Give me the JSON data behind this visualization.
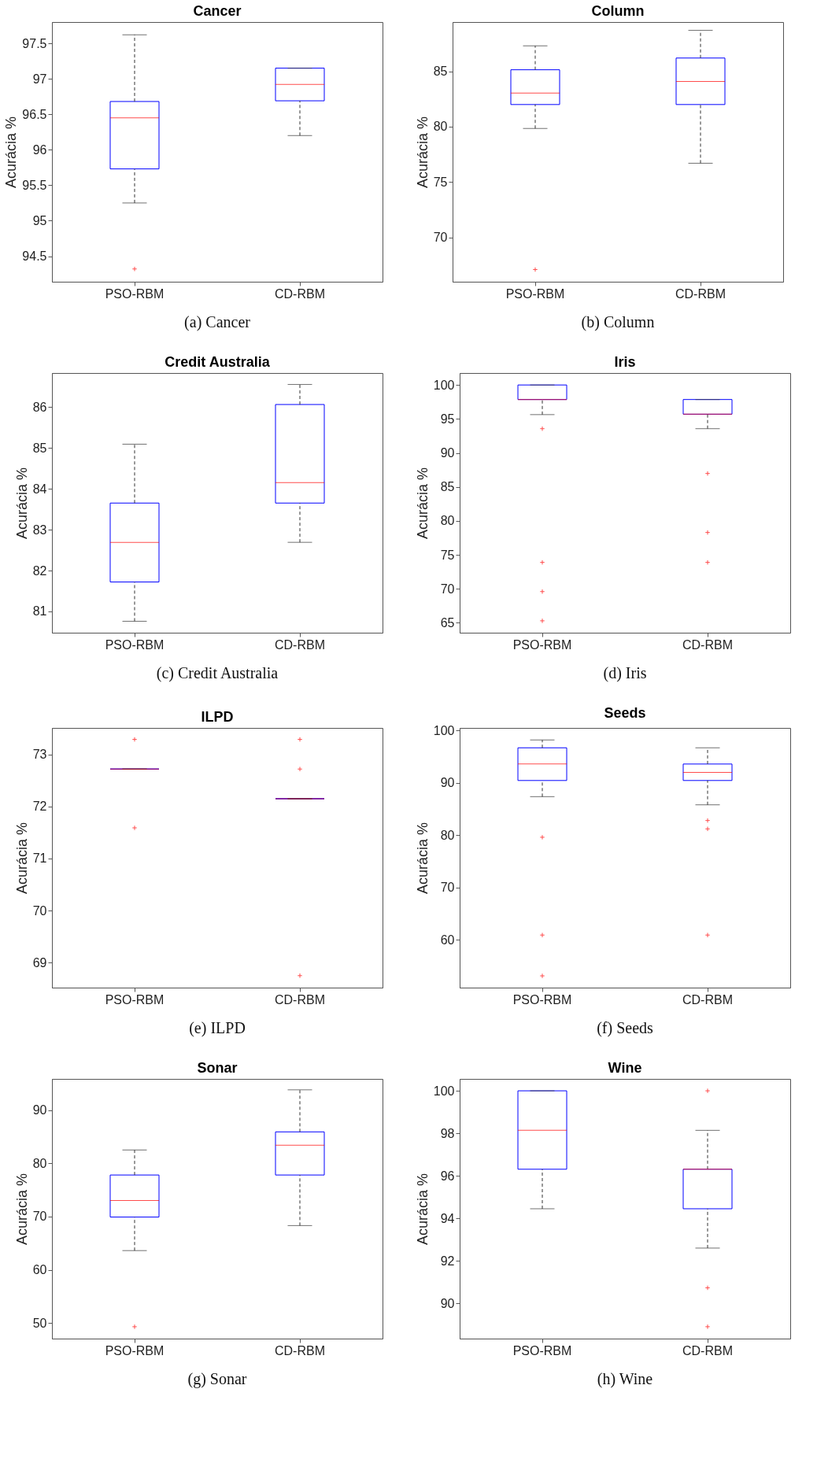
{
  "chart_data": [
    {
      "type": "box",
      "title": "Cancer",
      "ylabel": "Acurácia %",
      "categories": [
        "PSO-RBM",
        "CD-RBM"
      ],
      "ylim": [
        94.14,
        97.8
      ],
      "yticks": [
        94.5,
        95,
        95.5,
        96,
        96.5,
        97,
        97.5
      ],
      "annotations": [
        "(a) Cancer"
      ],
      "boxes": [
        {
          "low": 95.25,
          "q1": 95.73,
          "median": 96.45,
          "q3": 96.68,
          "high": 97.62,
          "outliers": [
            94.32
          ]
        },
        {
          "low": 96.2,
          "q1": 96.69,
          "median": 96.92,
          "q3": 97.15,
          "high": 97.15
        }
      ]
    },
    {
      "type": "box",
      "title": "Column",
      "ylabel": "Acurácia %",
      "categories": [
        "PSO-RBM",
        "CD-RBM"
      ],
      "ylim": [
        66.0,
        89.45
      ],
      "yticks": [
        70,
        75,
        80,
        85
      ],
      "annotations": [
        "(b) Column"
      ],
      "boxes": [
        {
          "low": 79.84,
          "q1": 82.0,
          "median": 83.03,
          "q3": 85.14,
          "high": 87.3,
          "outliers": [
            67.1
          ]
        },
        {
          "low": 76.7,
          "q1": 82.0,
          "median": 84.08,
          "q3": 86.2,
          "high": 88.7
        }
      ]
    },
    {
      "type": "box",
      "title": "Credit Australia",
      "ylabel": "Acurácia %",
      "categories": [
        "PSO-RBM",
        "CD-RBM"
      ],
      "ylim": [
        80.48,
        86.83
      ],
      "yticks": [
        81,
        82,
        83,
        84,
        85,
        86
      ],
      "annotations": [
        "(c) Credit Australia"
      ],
      "boxes": [
        {
          "low": 80.76,
          "q1": 81.72,
          "median": 82.69,
          "q3": 83.65,
          "high": 85.09
        },
        {
          "low": 82.69,
          "q1": 83.65,
          "median": 84.15,
          "q3": 86.06,
          "high": 86.55
        }
      ]
    },
    {
      "type": "box",
      "title": "Iris",
      "ylabel": "Acurácia %",
      "categories": [
        "PSO-RBM",
        "CD-RBM"
      ],
      "ylim": [
        63.55,
        101.76
      ],
      "yticks": [
        65,
        70,
        75,
        80,
        85,
        90,
        95,
        100
      ],
      "annotations": [
        "(d) Iris"
      ],
      "boxes": [
        {
          "low": 95.64,
          "q1": 97.86,
          "median": 97.86,
          "q3": 100,
          "high": 100,
          "outliers": [
            93.57,
            73.9,
            69.6,
            65.3
          ]
        },
        {
          "low": 93.57,
          "q1": 95.7,
          "median": 95.7,
          "q3": 97.86,
          "high": 97.86,
          "outliers": [
            86.98,
            78.3,
            73.9
          ]
        }
      ]
    },
    {
      "type": "box",
      "title": "ILPD",
      "ylabel": "Acurácia %",
      "categories": [
        "PSO-RBM",
        "CD-RBM"
      ],
      "ylim": [
        68.52,
        73.51
      ],
      "yticks": [
        69,
        70,
        71,
        72,
        73
      ],
      "annotations": [
        "(e) ILPD"
      ],
      "boxes": [
        {
          "low": 72.72,
          "q1": 72.72,
          "median": 72.72,
          "q3": 72.72,
          "high": 72.72,
          "outliers": [
            73.29,
            71.59
          ]
        },
        {
          "low": 72.15,
          "q1": 72.15,
          "median": 72.15,
          "q3": 72.15,
          "high": 72.15,
          "outliers": [
            73.29,
            72.72,
            68.75
          ]
        }
      ]
    },
    {
      "type": "box",
      "title": "Seeds",
      "ylabel": "Acurácia %",
      "categories": [
        "PSO-RBM",
        "CD-RBM"
      ],
      "ylim": [
        50.85,
        100.5
      ],
      "yticks": [
        60,
        70,
        80,
        90,
        100
      ],
      "annotations": [
        "(f) Seeds"
      ],
      "boxes": [
        {
          "low": 87.36,
          "q1": 90.45,
          "median": 93.6,
          "q3": 96.7,
          "high": 98.2,
          "outliers": [
            79.6,
            60.9,
            53.1
          ]
        },
        {
          "low": 85.8,
          "q1": 90.45,
          "median": 92.0,
          "q3": 93.6,
          "high": 96.7,
          "outliers": [
            82.8,
            81.2,
            60.9
          ]
        }
      ]
    },
    {
      "type": "box",
      "title": "Sonar",
      "ylabel": "Acurácia %",
      "categories": [
        "PSO-RBM",
        "CD-RBM"
      ],
      "ylim": [
        47.07,
        95.85
      ],
      "yticks": [
        50,
        60,
        70,
        80,
        90
      ],
      "annotations": [
        "(g) Sonar"
      ],
      "boxes": [
        {
          "low": 63.6,
          "q1": 69.9,
          "median": 73.0,
          "q3": 77.8,
          "high": 82.5,
          "outliers": [
            49.3
          ]
        },
        {
          "low": 68.3,
          "q1": 77.8,
          "median": 83.4,
          "q3": 85.9,
          "high": 93.8
        }
      ]
    },
    {
      "type": "box",
      "title": "Wine",
      "ylabel": "Acurácia %",
      "categories": [
        "PSO-RBM",
        "CD-RBM"
      ],
      "ylim": [
        88.34,
        100.56
      ],
      "yticks": [
        90,
        92,
        94,
        96,
        98,
        100
      ],
      "annotations": [
        "(h) Wine"
      ],
      "boxes": [
        {
          "low": 94.45,
          "q1": 96.31,
          "median": 98.14,
          "q3": 100,
          "high": 100
        },
        {
          "low": 92.6,
          "q1": 94.45,
          "median": 96.31,
          "q3": 96.31,
          "high": 98.14,
          "outliers": [
            100,
            90.73,
            88.9
          ]
        }
      ]
    }
  ]
}
